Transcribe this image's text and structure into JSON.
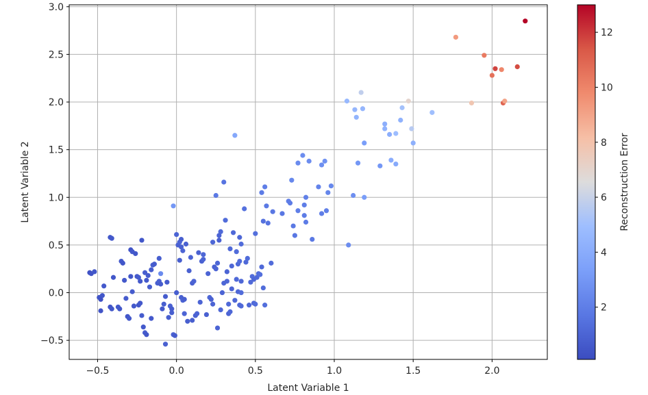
{
  "chart_data": {
    "type": "scatter",
    "title": "",
    "xlabel": "Latent Variable 1",
    "ylabel": "Latent Variable 2",
    "xlim": [
      -0.68,
      2.35
    ],
    "ylim": [
      -0.7,
      3.02
    ],
    "xticks": [
      -0.5,
      0.0,
      0.5,
      1.0,
      1.5,
      2.0
    ],
    "xtick_labels": [
      "−0.5",
      "0.0",
      "0.5",
      "1.0",
      "1.5",
      "2.0"
    ],
    "yticks": [
      -0.5,
      0.0,
      0.5,
      1.0,
      1.5,
      2.0,
      2.5,
      3.0
    ],
    "ytick_labels": [
      "−0.5",
      "0.0",
      "0.5",
      "1.0",
      "1.5",
      "2.0",
      "2.5",
      "3.0"
    ],
    "grid": true,
    "colormap": "coolwarm",
    "colorbar": {
      "label": "Reconstruction Error",
      "min": 0.1,
      "max": 13.0,
      "ticks": [
        2,
        4,
        6,
        8,
        10,
        12
      ],
      "tick_labels": [
        "2",
        "4",
        "6",
        "8",
        "10",
        "12"
      ]
    },
    "points": [
      [
        -0.55,
        0.21,
        0.3
      ],
      [
        -0.54,
        0.2,
        0.4
      ],
      [
        -0.52,
        0.22,
        0.5
      ],
      [
        -0.49,
        -0.05,
        0.4
      ],
      [
        -0.48,
        -0.07,
        0.3
      ],
      [
        -0.47,
        -0.03,
        0.5
      ],
      [
        -0.46,
        0.07,
        0.6
      ],
      [
        -0.48,
        -0.19,
        0.4
      ],
      [
        -0.42,
        0.58,
        0.5
      ],
      [
        -0.41,
        0.57,
        0.6
      ],
      [
        -0.4,
        0.16,
        0.5
      ],
      [
        -0.42,
        -0.15,
        0.4
      ],
      [
        -0.41,
        -0.17,
        0.5
      ],
      [
        -0.37,
        -0.15,
        0.6
      ],
      [
        -0.36,
        -0.17,
        0.5
      ],
      [
        -0.35,
        0.33,
        0.6
      ],
      [
        -0.34,
        0.31,
        0.5
      ],
      [
        -0.33,
        0.13,
        0.6
      ],
      [
        -0.32,
        -0.06,
        0.7
      ],
      [
        -0.31,
        -0.25,
        0.5
      ],
      [
        -0.3,
        -0.27,
        0.6
      ],
      [
        -0.29,
        0.17,
        0.5
      ],
      [
        -0.29,
        0.45,
        0.4
      ],
      [
        -0.28,
        0.43,
        0.6
      ],
      [
        -0.28,
        0.01,
        0.7
      ],
      [
        -0.27,
        -0.14,
        0.6
      ],
      [
        -0.26,
        0.41,
        0.5
      ],
      [
        -0.25,
        0.17,
        0.6
      ],
      [
        -0.24,
        0.16,
        0.7
      ],
      [
        -0.23,
        0.12,
        0.6
      ],
      [
        -0.24,
        -0.13,
        0.5
      ],
      [
        -0.23,
        -0.11,
        0.6
      ],
      [
        -0.22,
        -0.24,
        0.7
      ],
      [
        -0.22,
        0.55,
        0.5
      ],
      [
        -0.21,
        -0.36,
        0.6
      ],
      [
        -0.2,
        -0.42,
        0.7
      ],
      [
        -0.19,
        -0.44,
        0.5
      ],
      [
        -0.2,
        0.21,
        0.8
      ],
      [
        -0.19,
        0.13,
        0.6
      ],
      [
        -0.18,
        0.18,
        0.7
      ],
      [
        -0.17,
        0.06,
        0.8
      ],
      [
        -0.16,
        -0.27,
        0.6
      ],
      [
        -0.16,
        0.24,
        0.7
      ],
      [
        -0.15,
        0.29,
        0.8
      ],
      [
        -0.14,
        0.3,
        0.7
      ],
      [
        -0.12,
        0.1,
        0.8
      ],
      [
        -0.11,
        0.12,
        0.9
      ],
      [
        -0.11,
        0.36,
        0.8
      ],
      [
        -0.1,
        0.09,
        0.7
      ],
      [
        -0.1,
        0.2,
        2.5
      ],
      [
        -0.09,
        -0.17,
        0.6
      ],
      [
        -0.08,
        -0.12,
        0.8
      ],
      [
        -0.07,
        -0.04,
        0.7
      ],
      [
        -0.07,
        -0.54,
        0.9
      ],
      [
        -0.06,
        0.11,
        0.7
      ],
      [
        -0.05,
        -0.26,
        0.8
      ],
      [
        -0.04,
        -0.14,
        0.9
      ],
      [
        -0.03,
        -0.17,
        0.7
      ],
      [
        -0.03,
        -0.21,
        0.8
      ],
      [
        -0.02,
        -0.44,
        0.9
      ],
      [
        -0.01,
        -0.45,
        0.7
      ],
      [
        -0.02,
        0.91,
        3.0
      ],
      [
        0.0,
        0.61,
        1.0
      ],
      [
        0.0,
        0.0,
        0.8
      ],
      [
        0.01,
        0.5,
        0.9
      ],
      [
        0.02,
        0.53,
        1.0
      ],
      [
        0.03,
        0.56,
        0.8
      ],
      [
        0.03,
        0.48,
        0.9
      ],
      [
        0.04,
        0.44,
        1.0
      ],
      [
        0.02,
        0.34,
        0.8
      ],
      [
        0.03,
        -0.05,
        0.9
      ],
      [
        0.04,
        -0.08,
        1.0
      ],
      [
        0.05,
        -0.07,
        0.8
      ],
      [
        0.06,
        0.51,
        0.9
      ],
      [
        0.05,
        -0.22,
        1.0
      ],
      [
        0.07,
        -0.3,
        0.8
      ],
      [
        0.08,
        0.23,
        0.9
      ],
      [
        0.09,
        0.37,
        1.0
      ],
      [
        0.1,
        -0.29,
        0.8
      ],
      [
        0.1,
        0.1,
        0.9
      ],
      [
        0.11,
        0.12,
        1.0
      ],
      [
        0.12,
        -0.24,
        0.9
      ],
      [
        0.13,
        -0.22,
        1.0
      ],
      [
        0.14,
        0.42,
        0.9
      ],
      [
        0.15,
        -0.1,
        1.0
      ],
      [
        0.16,
        0.33,
        0.9
      ],
      [
        0.17,
        0.35,
        1.0
      ],
      [
        0.17,
        0.4,
        1.1
      ],
      [
        0.19,
        -0.23,
        0.9
      ],
      [
        0.2,
        0.2,
        1.0
      ],
      [
        0.21,
        -0.05,
        1.1
      ],
      [
        0.22,
        -0.07,
        0.9
      ],
      [
        0.23,
        -0.12,
        1.0
      ],
      [
        0.23,
        0.53,
        1.1
      ],
      [
        0.24,
        0.27,
        0.9
      ],
      [
        0.25,
        0.25,
        1.0
      ],
      [
        0.25,
        1.02,
        1.8
      ],
      [
        0.26,
        -0.37,
        1.0
      ],
      [
        0.26,
        0.31,
        1.1
      ],
      [
        0.27,
        0.55,
        0.9
      ],
      [
        0.27,
        0.6,
        1.0
      ],
      [
        0.28,
        -0.18,
        1.1
      ],
      [
        0.28,
        0.64,
        1.2
      ],
      [
        0.29,
        0.0,
        1.0
      ],
      [
        0.3,
        1.16,
        1.6
      ],
      [
        0.3,
        0.1,
        1.1
      ],
      [
        0.31,
        0.76,
        1.3
      ],
      [
        0.32,
        0.22,
        1.0
      ],
      [
        0.32,
        0.12,
        1.1
      ],
      [
        0.33,
        -0.12,
        1.2
      ],
      [
        0.33,
        -0.22,
        1.0
      ],
      [
        0.34,
        -0.2,
        1.1
      ],
      [
        0.34,
        0.46,
        1.2
      ],
      [
        0.35,
        0.04,
        1.0
      ],
      [
        0.35,
        0.28,
        1.1
      ],
      [
        0.36,
        0.63,
        1.2
      ],
      [
        0.37,
        1.65,
        3.8
      ],
      [
        0.37,
        -0.08,
        1.1
      ],
      [
        0.38,
        0.14,
        1.2
      ],
      [
        0.38,
        0.43,
        1.3
      ],
      [
        0.39,
        0.01,
        1.1
      ],
      [
        0.39,
        0.3,
        1.2
      ],
      [
        0.4,
        0.33,
        1.3
      ],
      [
        0.4,
        0.58,
        1.1
      ],
      [
        0.4,
        -0.13,
        1.2
      ],
      [
        0.41,
        0.0,
        1.3
      ],
      [
        0.41,
        0.12,
        1.1
      ],
      [
        0.41,
        -0.14,
        1.2
      ],
      [
        0.41,
        0.51,
        1.3
      ],
      [
        0.43,
        0.88,
        1.5
      ],
      [
        0.44,
        0.32,
        1.2
      ],
      [
        0.45,
        0.36,
        1.3
      ],
      [
        0.46,
        -0.13,
        1.1
      ],
      [
        0.47,
        0.11,
        1.2
      ],
      [
        0.48,
        0.17,
        1.3
      ],
      [
        0.49,
        0.14,
        1.1
      ],
      [
        0.49,
        -0.11,
        1.2
      ],
      [
        0.5,
        -0.12,
        1.3
      ],
      [
        0.5,
        0.62,
        1.4
      ],
      [
        0.51,
        0.16,
        1.2
      ],
      [
        0.52,
        0.2,
        1.3
      ],
      [
        0.53,
        0.19,
        1.4
      ],
      [
        0.54,
        0.27,
        1.2
      ],
      [
        0.54,
        1.05,
        1.9
      ],
      [
        0.55,
        0.75,
        1.5
      ],
      [
        0.55,
        0.05,
        1.3
      ],
      [
        0.56,
        -0.13,
        1.4
      ],
      [
        0.56,
        1.11,
        2.0
      ],
      [
        0.57,
        0.91,
        1.8
      ],
      [
        0.58,
        0.73,
        1.6
      ],
      [
        0.6,
        0.31,
        1.3
      ],
      [
        0.61,
        0.85,
        1.7
      ],
      [
        0.67,
        0.83,
        1.7
      ],
      [
        0.71,
        0.96,
        2.0
      ],
      [
        0.72,
        0.94,
        1.9
      ],
      [
        0.73,
        1.18,
        2.4
      ],
      [
        0.74,
        0.7,
        1.8
      ],
      [
        0.75,
        0.6,
        1.7
      ],
      [
        0.77,
        1.36,
        2.5
      ],
      [
        0.77,
        0.86,
        2.0
      ],
      [
        0.8,
        1.44,
        2.6
      ],
      [
        0.81,
        0.81,
        1.9
      ],
      [
        0.81,
        0.92,
        2.0
      ],
      [
        0.82,
        1.0,
        2.1
      ],
      [
        0.82,
        0.74,
        1.9
      ],
      [
        0.84,
        1.38,
        2.6
      ],
      [
        0.86,
        0.56,
        1.8
      ],
      [
        0.9,
        1.11,
        2.2
      ],
      [
        0.92,
        0.83,
        2.0
      ],
      [
        0.92,
        1.34,
        2.7
      ],
      [
        0.94,
        1.38,
        2.8
      ],
      [
        0.95,
        0.86,
        2.1
      ],
      [
        0.96,
        1.05,
        2.3
      ],
      [
        0.98,
        1.12,
        2.4
      ],
      [
        1.08,
        2.01,
        4.6
      ],
      [
        1.09,
        0.5,
        2.6
      ],
      [
        1.12,
        1.02,
        2.7
      ],
      [
        1.13,
        1.92,
        4.5
      ],
      [
        1.14,
        1.84,
        4.4
      ],
      [
        1.15,
        1.36,
        3.0
      ],
      [
        1.17,
        2.1,
        5.8
      ],
      [
        1.18,
        1.93,
        4.5
      ],
      [
        1.19,
        1.57,
        3.3
      ],
      [
        1.19,
        1.0,
        3.3
      ],
      [
        1.29,
        1.33,
        3.0
      ],
      [
        1.32,
        1.77,
        4.1
      ],
      [
        1.32,
        1.72,
        4.3
      ],
      [
        1.35,
        1.66,
        4.1
      ],
      [
        1.36,
        1.39,
        4.0
      ],
      [
        1.39,
        1.67,
        4.9
      ],
      [
        1.39,
        1.35,
        3.9
      ],
      [
        1.42,
        1.81,
        4.3
      ],
      [
        1.43,
        1.94,
        5.1
      ],
      [
        1.47,
        2.01,
        7.0
      ],
      [
        1.49,
        1.72,
        5.6
      ],
      [
        1.5,
        1.57,
        4.2
      ],
      [
        1.62,
        1.89,
        5.0
      ],
      [
        1.77,
        2.68,
        9.3
      ],
      [
        1.87,
        1.99,
        7.8
      ],
      [
        1.95,
        2.49,
        10.3
      ],
      [
        2.0,
        2.28,
        10.6
      ],
      [
        2.02,
        2.35,
        11.8
      ],
      [
        2.06,
        2.34,
        9.9
      ],
      [
        2.07,
        1.99,
        11.0
      ],
      [
        2.08,
        2.01,
        9.0
      ],
      [
        2.16,
        2.37,
        11.6
      ],
      [
        2.21,
        2.85,
        13.0
      ]
    ]
  }
}
